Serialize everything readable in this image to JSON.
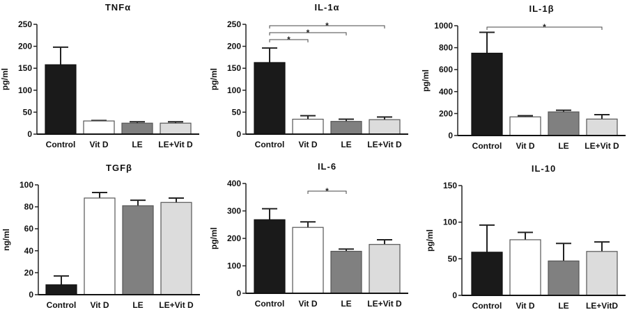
{
  "colors": {
    "Control": "#1a1a1a",
    "Vit D": "#ffffff",
    "LE": "#808080",
    "LE+Vit D": "#dcdcdc"
  },
  "chart_data": [
    {
      "type": "bar",
      "title": "TNFα",
      "ylabel": "pg/ml",
      "ylim": [
        0,
        250
      ],
      "yticks": [
        0,
        50,
        100,
        150,
        200,
        250
      ],
      "categories": [
        "Control",
        "Vit D",
        "LE",
        "LE+Vit D"
      ],
      "values": [
        158,
        30,
        25,
        25
      ],
      "errors": [
        40,
        1,
        3,
        3
      ],
      "significance": []
    },
    {
      "type": "bar",
      "title": "IL-1α",
      "ylabel": "pg/ml",
      "ylim": [
        0,
        250
      ],
      "yticks": [
        0,
        50,
        100,
        150,
        200,
        250
      ],
      "categories": [
        "Control",
        "Vit D",
        "LE",
        "LE+Vit D"
      ],
      "values": [
        163,
        34,
        29,
        33
      ],
      "errors": [
        33,
        8,
        5,
        6
      ],
      "significance": [
        {
          "from": "Control",
          "to": "Vit D",
          "label": "*"
        },
        {
          "from": "Control",
          "to": "LE",
          "label": "*"
        },
        {
          "from": "Control",
          "to": "LE+Vit D",
          "label": "*"
        }
      ]
    },
    {
      "type": "bar",
      "title": "IL-1β",
      "ylabel": "pg/ml",
      "ylim": [
        0,
        1000
      ],
      "yticks": [
        0,
        200,
        400,
        600,
        800,
        1000
      ],
      "categories": [
        "Control",
        "Vit D",
        "LE",
        "LE+Vit D"
      ],
      "values": [
        750,
        170,
        215,
        150
      ],
      "errors": [
        190,
        10,
        15,
        40
      ],
      "significance": [
        {
          "from": "Control",
          "to": "LE+Vit D",
          "label": "*"
        }
      ]
    },
    {
      "type": "bar",
      "title": "TGFβ",
      "ylabel": "ng/ml",
      "ylim": [
        0,
        100
      ],
      "yticks": [
        0,
        20,
        40,
        60,
        80,
        100
      ],
      "categories": [
        "Control",
        "Vit D",
        "LE",
        "LE+Vit D"
      ],
      "values": [
        9,
        88,
        81,
        84
      ],
      "errors": [
        8,
        5,
        5,
        4
      ],
      "significance": []
    },
    {
      "type": "bar",
      "title": "IL-6",
      "ylabel": "pg/ml",
      "ylim": [
        0,
        400
      ],
      "yticks": [
        0,
        100,
        200,
        300,
        400
      ],
      "categories": [
        "Control",
        "Vit D",
        "LE",
        "LE+Vit D"
      ],
      "values": [
        268,
        240,
        153,
        178
      ],
      "errors": [
        40,
        20,
        8,
        17
      ],
      "significance": [
        {
          "from": "Vit D",
          "to": "LE",
          "label": "*"
        }
      ]
    },
    {
      "type": "bar",
      "title": "IL-10",
      "ylabel": "pg/ml",
      "ylim": [
        0,
        150
      ],
      "yticks": [
        0,
        50,
        100,
        150
      ],
      "categories": [
        "Control",
        "Vit D",
        "LE",
        "LE+VitD"
      ],
      "values": [
        59,
        76,
        47,
        60
      ],
      "errors": [
        37,
        10,
        24,
        13
      ],
      "significance": []
    }
  ]
}
